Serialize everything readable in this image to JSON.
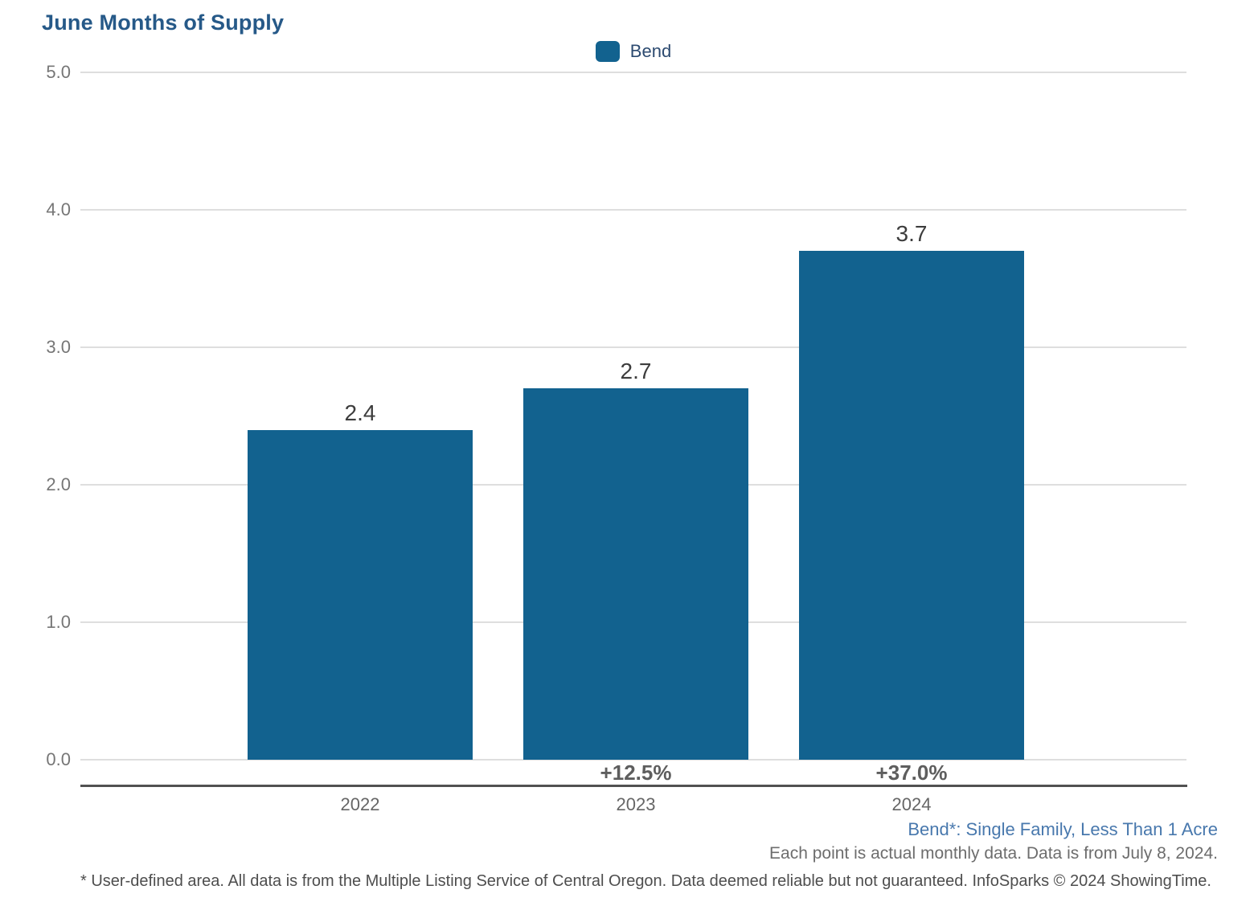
{
  "title": "June Months of Supply",
  "legend": {
    "label": "Bend",
    "swatch_color": "#12628f"
  },
  "chart_data": {
    "type": "bar",
    "title": "June Months of Supply",
    "series": [
      {
        "name": "Bend",
        "values": [
          2.4,
          2.7,
          3.7
        ]
      }
    ],
    "categories": [
      "2022",
      "2023",
      "2024"
    ],
    "value_labels": [
      "2.4",
      "2.7",
      "3.7"
    ],
    "pct_change_labels": [
      "",
      "+12.5%",
      "+37.0%"
    ],
    "ylim": [
      0.0,
      5.0
    ],
    "ytick_labels": [
      "5.0",
      "4.0",
      "3.0",
      "2.0",
      "1.0",
      "0.0"
    ],
    "xlabel": "",
    "ylabel": "",
    "grid": true,
    "legend_position": "top-center",
    "bar_color": "#12628f"
  },
  "footnotes": {
    "series_note": "Bend*: Single Family, Less Than 1 Acre",
    "data_note": "Each point is actual monthly data. Data is from July 8, 2024.",
    "disclaimer": "* User-defined area. All data is from the Multiple Listing Service of Central Oregon. Data deemed reliable but not guaranteed. InfoSparks © 2024 ShowingTime."
  },
  "colors": {
    "bar": "#12628f",
    "title_text": "#265988",
    "footnote_link": "#4878ad"
  }
}
